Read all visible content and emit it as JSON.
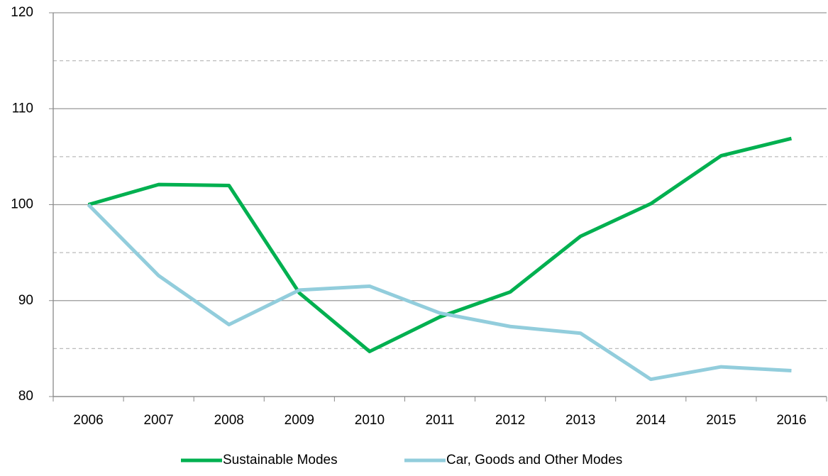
{
  "chart_data": {
    "type": "line",
    "categories": [
      "2006",
      "2007",
      "2008",
      "2009",
      "2010",
      "2011",
      "2012",
      "2013",
      "2014",
      "2015",
      "2016"
    ],
    "series": [
      {
        "name": "Sustainable Modes",
        "color": "#00b050",
        "values": [
          100,
          102.1,
          102.0,
          90.8,
          84.7,
          88.3,
          90.9,
          96.7,
          100.1,
          105.1,
          106.9
        ]
      },
      {
        "name": "Car, Goods and Other Modes",
        "color": "#92cddc",
        "values": [
          100,
          92.6,
          87.5,
          91.1,
          91.5,
          88.7,
          87.3,
          86.6,
          81.8,
          83.1,
          82.7
        ]
      }
    ],
    "ylim": [
      80,
      120
    ],
    "yticks": [
      80,
      90,
      100,
      110,
      120
    ],
    "minor_yticks": [
      85,
      95,
      105,
      115
    ],
    "grid": true,
    "legend": "bottom"
  }
}
